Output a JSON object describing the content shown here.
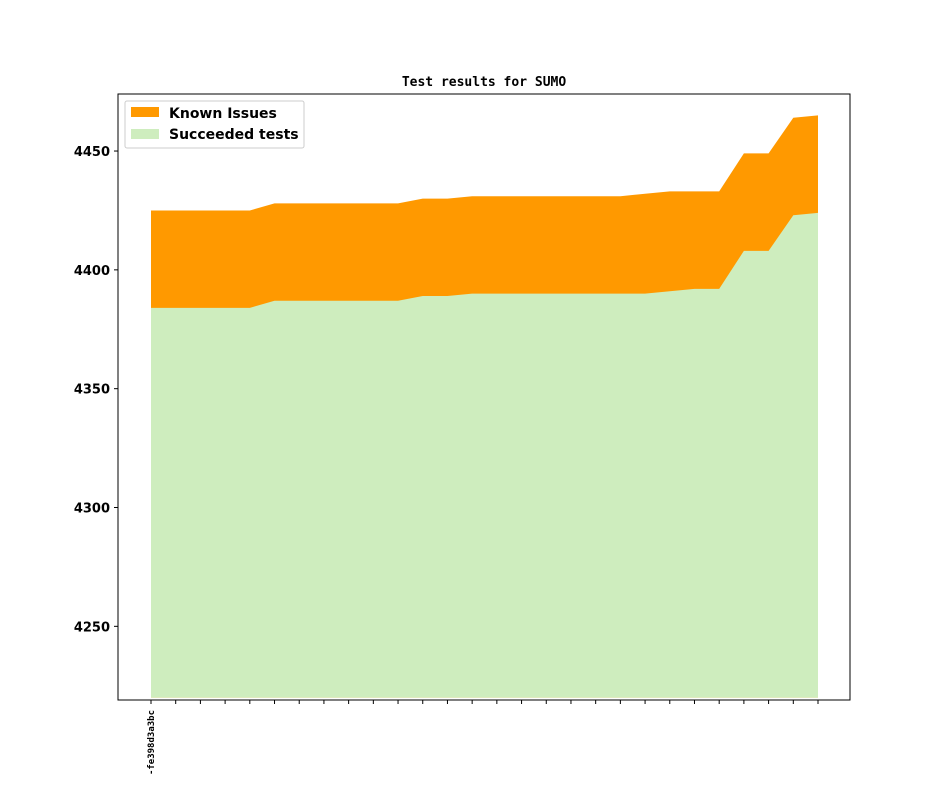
{
  "chart_data": {
    "type": "area",
    "title": "Test results for SUMO",
    "xlabel": "",
    "ylabel": "",
    "x_tick_labels": [
      "-fe398d3a3bc"
    ],
    "n_points": 28,
    "ylim": [
      4219,
      4474
    ],
    "yticks": [
      4250,
      4300,
      4350,
      4400,
      4450
    ],
    "baseline": 4220,
    "grid": false,
    "legend_position": "top-left",
    "series": [
      {
        "name": "Known Issues",
        "color": "#ff9900",
        "values": [
          4425,
          4425,
          4425,
          4425,
          4425,
          4428,
          4428,
          4428,
          4428,
          4428,
          4428,
          4430,
          4430,
          4431,
          4431,
          4431,
          4431,
          4431,
          4431,
          4431,
          4432,
          4433,
          4433,
          4433,
          4449,
          4449,
          4464,
          4465
        ]
      },
      {
        "name": "Succeeded tests",
        "color": "#ceedbe",
        "values": [
          4384,
          4384,
          4384,
          4384,
          4384,
          4387,
          4387,
          4387,
          4387,
          4387,
          4387,
          4389,
          4389,
          4390,
          4390,
          4390,
          4390,
          4390,
          4390,
          4390,
          4390,
          4391,
          4392,
          4392,
          4408,
          4408,
          4423,
          4424
        ]
      }
    ]
  }
}
